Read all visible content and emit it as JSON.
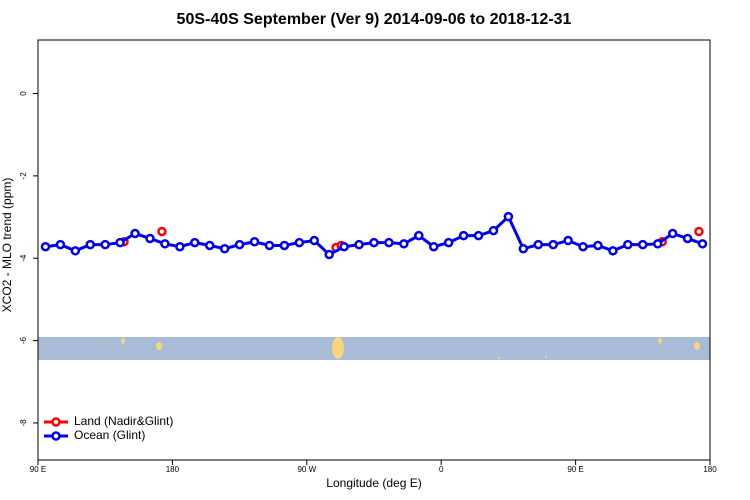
{
  "chart_data": {
    "type": "line",
    "title": "50S-40S September (Ver 9)   2014-09-06 to 2018-12-31",
    "x_label": "Longitude (deg E)",
    "y_label": "XCO2 - MLO trend (ppm)",
    "xlim": [
      90,
      540
    ],
    "ylim": [
      -8.9,
      1.3
    ],
    "xticks": [
      {
        "value": 90,
        "label": "90 E"
      },
      180,
      {
        "value": 270,
        "label": "90 W"
      },
      {
        "value": 360,
        "label": "0"
      },
      {
        "value": 450,
        "label": "90 E"
      },
      {
        "value": 540,
        "label": "180"
      }
    ],
    "yticks": [
      0,
      -2,
      -4,
      -6,
      -8
    ],
    "legend": "bottom-left",
    "series": [
      {
        "name": "Land (Nadir&Glint)",
        "color": "#ff0000",
        "lines": false,
        "x": [
          147.6,
          173,
          289.6,
          293,
          508,
          532.6
        ],
        "values": [
          -3.6,
          -3.35,
          -3.74,
          -3.69,
          -3.6,
          -3.35
        ]
      },
      {
        "name": "Ocean (Glint)",
        "color": "#0000ee",
        "lines": true,
        "x": [
          95,
          105,
          115,
          125,
          135,
          145,
          155,
          165,
          175,
          185,
          195,
          205,
          215,
          225,
          235,
          245,
          255,
          265,
          275,
          285,
          295,
          305,
          315,
          325,
          335,
          345,
          355,
          365,
          375,
          385,
          395,
          405,
          415,
          425,
          435,
          445,
          455,
          465,
          475,
          485,
          495,
          505,
          515,
          525,
          535
        ],
        "values": [
          -3.72,
          -3.67,
          -3.82,
          -3.67,
          -3.67,
          -3.62,
          -3.4,
          -3.52,
          -3.65,
          -3.72,
          -3.62,
          -3.69,
          -3.77,
          -3.67,
          -3.6,
          -3.69,
          -3.69,
          -3.62,
          -3.57,
          -3.91,
          -3.72,
          -3.67,
          -3.62,
          -3.62,
          -3.65,
          -3.45,
          -3.72,
          -3.62,
          -3.45,
          -3.45,
          -3.33,
          -2.99,
          -3.77,
          -3.67,
          -3.67,
          -3.57,
          -3.72,
          -3.69,
          -3.82,
          -3.67,
          -3.67,
          -3.65,
          -3.4,
          -3.52,
          -3.65
        ]
      }
    ]
  }
}
